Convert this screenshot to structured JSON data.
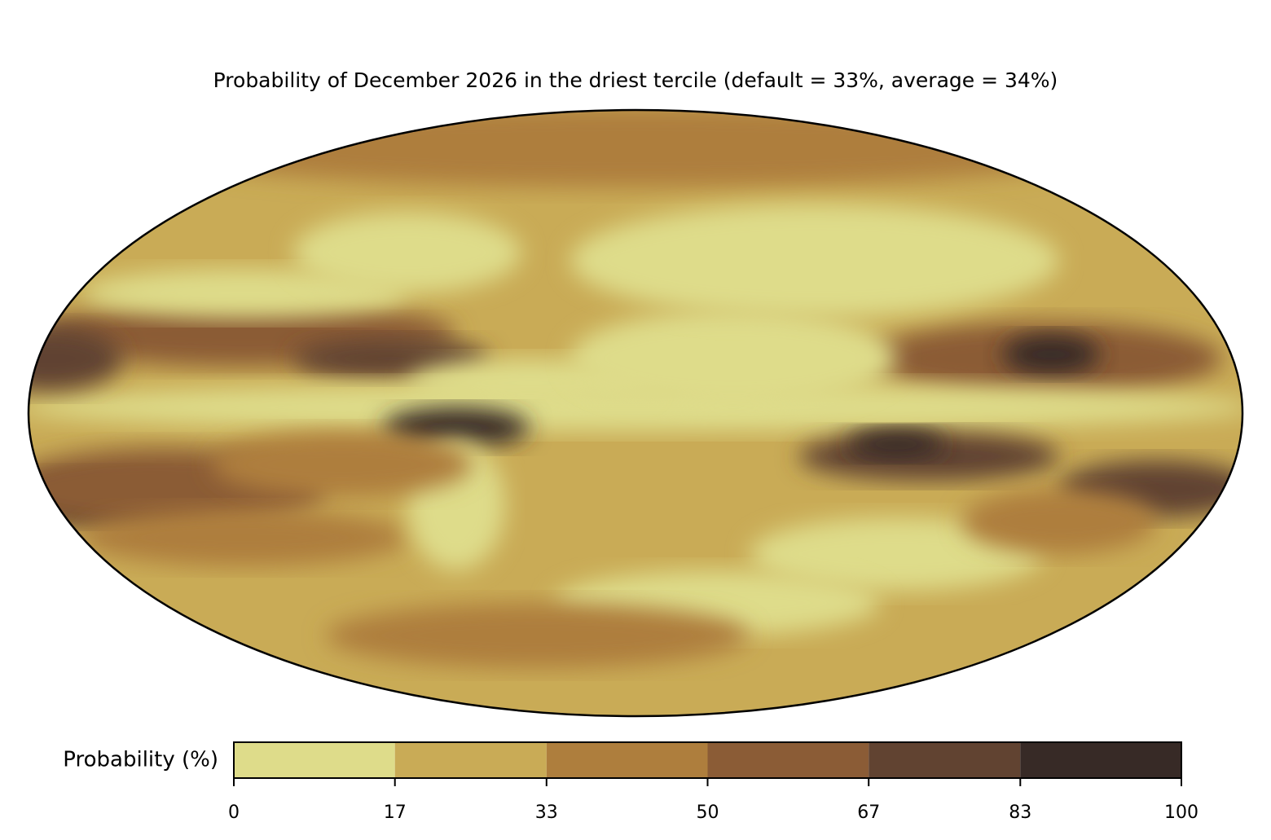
{
  "title": "Probability of December 2026 in the driest tercile (default = 33%, average = 34%)",
  "colorbar": {
    "label": "Probability (%)",
    "ticks": [
      0,
      17,
      33,
      50,
      67,
      83,
      100
    ],
    "colors": [
      "#dedc8a",
      "#c9ab56",
      "#ae7e3d",
      "#8b5c36",
      "#614331",
      "#372a26"
    ]
  }
}
